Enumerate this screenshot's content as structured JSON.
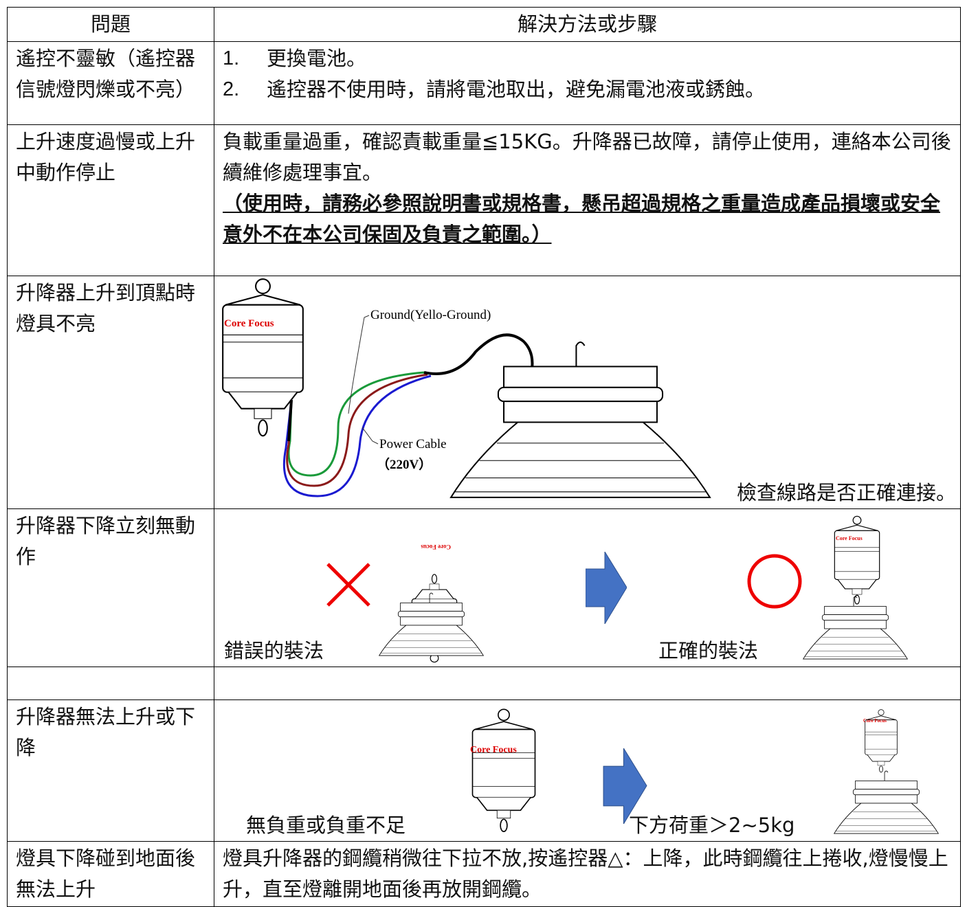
{
  "table": {
    "header": [
      "問題",
      "解決方法或步驟"
    ],
    "rows": [
      {
        "problem": "遙控不靈敏（遙控器信號燈閃爍或不亮）",
        "steps": [
          {
            "number": "1.",
            "text": "更換電池。"
          },
          {
            "number": "2.",
            "text": "遙控器不使用時，請將電池取出，避免漏電池液或銹蝕。"
          }
        ]
      },
      {
        "problem": "上升速度過慢或上升中動作停止",
        "text": "負載重量過重，確認責載重量≦15KG。升降器已故障，請停止使用，連絡本公司後續維修處理事宜。",
        "warning": "（使用時，請務必參照說明書或規格書，懸吊超過規格之重量造成產品損壞或安全意外不在本公司保固及負責之範圍。）"
      },
      {
        "problem": "升降器上升到頂點時燈具不亮",
        "brand": "Core Focus",
        "ground_label": "Ground(Yello-Ground)",
        "power_label": "Power Cable",
        "voltage": "（220V）",
        "text": "檢查線路是否正確連接。"
      },
      {
        "problem": "升降器下降立刻無動作",
        "brand": "Core Focus",
        "wrong": "錯誤的裝法",
        "right": "正確的裝法"
      },
      {
        "problem": "升降器無法上升或下降",
        "brand": "Core Focus",
        "before": "無負重或負重不足",
        "after": "下方荷重＞2~5kg"
      },
      {
        "problem": "燈具下降碰到地面後無法上升",
        "text": "燈具升降器的鋼纜稍微往下拉不放,按遙控器△：上降，此時鋼纜往上捲收,燈慢慢上升，直至燈離開地面後再放開鋼纜。"
      }
    ]
  }
}
